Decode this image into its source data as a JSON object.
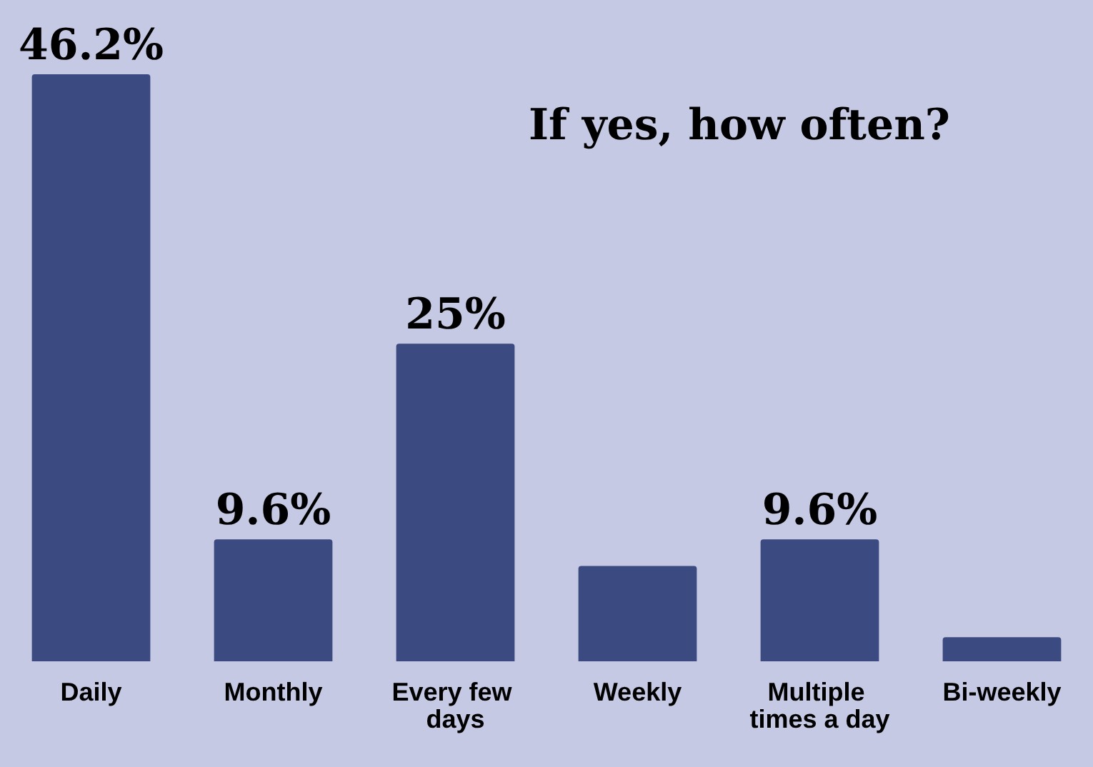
{
  "chart_data": {
    "type": "bar",
    "title": "If yes, how often?",
    "categories": [
      "Daily",
      "Monthly",
      "Every few days",
      "Weekly",
      "Multiple times a day",
      "Bi-weekly"
    ],
    "values": [
      46.2,
      9.6,
      25,
      7.5,
      9.6,
      1.9
    ],
    "value_labels": [
      "46.2%",
      "9.6%",
      "25%",
      null,
      "9.6%",
      null
    ],
    "color": "#3b4a80"
  }
}
